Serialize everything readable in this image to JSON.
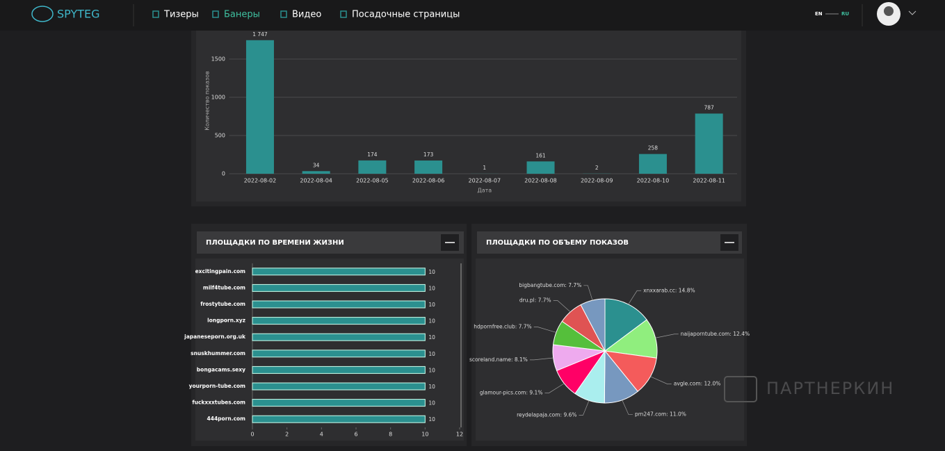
{
  "header": {
    "logo": "SPYTEG",
    "nav": [
      "Тизеры",
      "Банеры",
      "Видео",
      "Посадочные страницы"
    ],
    "active": 1,
    "languages": [
      "EN",
      "RU"
    ]
  },
  "watermark": "ПАРТНЕРКИН",
  "chart_data": [
    {
      "type": "bar",
      "orientation": "vertical",
      "categories": [
        "2022-08-02",
        "2022-08-04",
        "2022-08-05",
        "2022-08-06",
        "2022-08-07",
        "2022-08-08",
        "2022-08-09",
        "2022-08-10",
        "2022-08-11"
      ],
      "values": [
        1747,
        34,
        174,
        173,
        1,
        161,
        2,
        258,
        787
      ],
      "value_labels": [
        "1 747",
        "34",
        "174",
        "173",
        "1",
        "161",
        "2",
        "258",
        "787"
      ],
      "ylim": [
        0,
        2000
      ],
      "yticks": [
        0,
        500,
        1000,
        1500
      ],
      "y_label": "Количество показов",
      "x_label": "Дата",
      "color": "#2b908f",
      "grid": true
    },
    {
      "type": "bar",
      "orientation": "horizontal",
      "title": "ПЛОЩАДКИ ПО ВРЕМЕНИ ЖИЗНИ",
      "categories": [
        "excitingpain.com",
        "milf4tube.com",
        "frostytube.com",
        "longporn.xyz",
        "japaneseporn.org.uk",
        "snuskhummer.com",
        "bongacams.sexy",
        "yourporn-tube.com",
        "fuckxxxtubes.com",
        "444porn.com"
      ],
      "values": [
        10,
        10,
        10,
        10,
        10,
        10,
        10,
        10,
        10,
        10
      ],
      "xlim": [
        0,
        12
      ],
      "xticks": [
        0,
        2,
        4,
        6,
        8,
        10,
        12
      ],
      "color": "#2b908f"
    },
    {
      "type": "pie",
      "title": "ПЛОЩАДКИ ПО ОБЪЕМУ ПОКАЗОВ",
      "categories": [
        "xnxxarab.cc",
        "naijaporntube.com",
        "avgle.com",
        "prn247.com",
        "reydelapaja.com",
        "glamour-pics.com",
        "scoreland.name",
        "hdpornfree.club",
        "dru.pl",
        "bigbangtube.com"
      ],
      "values": [
        14.8,
        12.4,
        12.0,
        11.0,
        9.6,
        9.1,
        8.1,
        7.7,
        7.7,
        7.7
      ],
      "value_labels": [
        "xnxxarab.cc: 14.8%",
        "naijaporntube.com: 12.4%",
        "avgle.com: 12.0%",
        "prn247.com: 11.0%",
        "reydelapaja.com: 9.6%",
        "glamour-pics.com: 9.1%",
        "scoreland.name: 8.1%",
        "hdpornfree.club: 7.7%",
        "dru.pl: 7.7%",
        "bigbangtube.com: 7.7%"
      ],
      "colors": [
        "#2b908f",
        "#90ee7e",
        "#f45b5b",
        "#7798bf",
        "#aaeeee",
        "#ff0066",
        "#eeaaee",
        "#55bf3b",
        "#df5353",
        "#7798bf"
      ]
    }
  ]
}
